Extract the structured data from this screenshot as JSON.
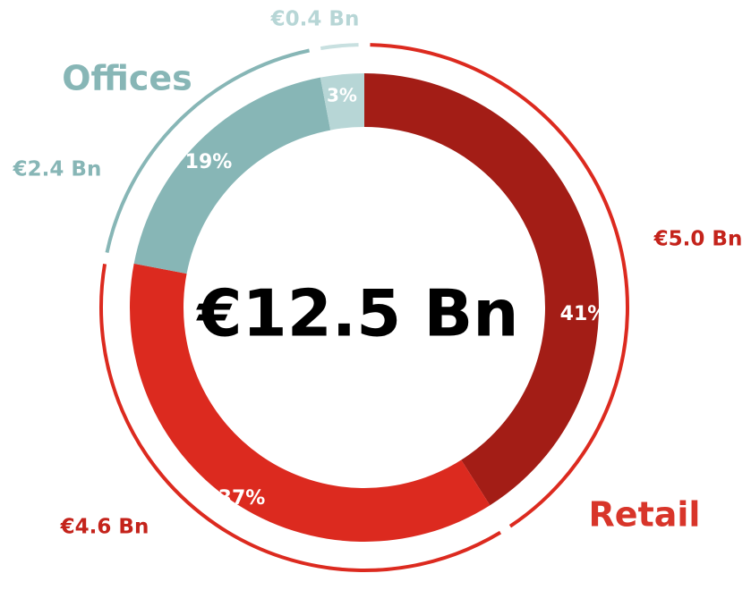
{
  "chart_data": {
    "type": "donut",
    "center_label": "€12.5 Bn",
    "values": [
      41,
      37,
      19,
      3
    ],
    "value_labels": [
      "41%",
      "37%",
      "19%",
      "3%"
    ],
    "colors": [
      "#a31d16",
      "#dc2a1f",
      "#87b6b6",
      "#b7d6d6"
    ],
    "outer_colors": [
      "#dc2a1f",
      "#dc2a1f",
      "#87b6b6",
      "#c8e0e0"
    ],
    "amount_labels": [
      "€5.0 Bn",
      "€4.6 Bn",
      "€2.4 Bn",
      "€0.4 Bn"
    ],
    "amount_colors": [
      "#c4231b",
      "#c4231b",
      "#87b6b6",
      "#b7d6d6"
    ],
    "group_labels": [
      {
        "text": "Retail",
        "color": "#d8352a"
      },
      {
        "text": "Offices",
        "color": "#87b6b6"
      }
    ]
  }
}
